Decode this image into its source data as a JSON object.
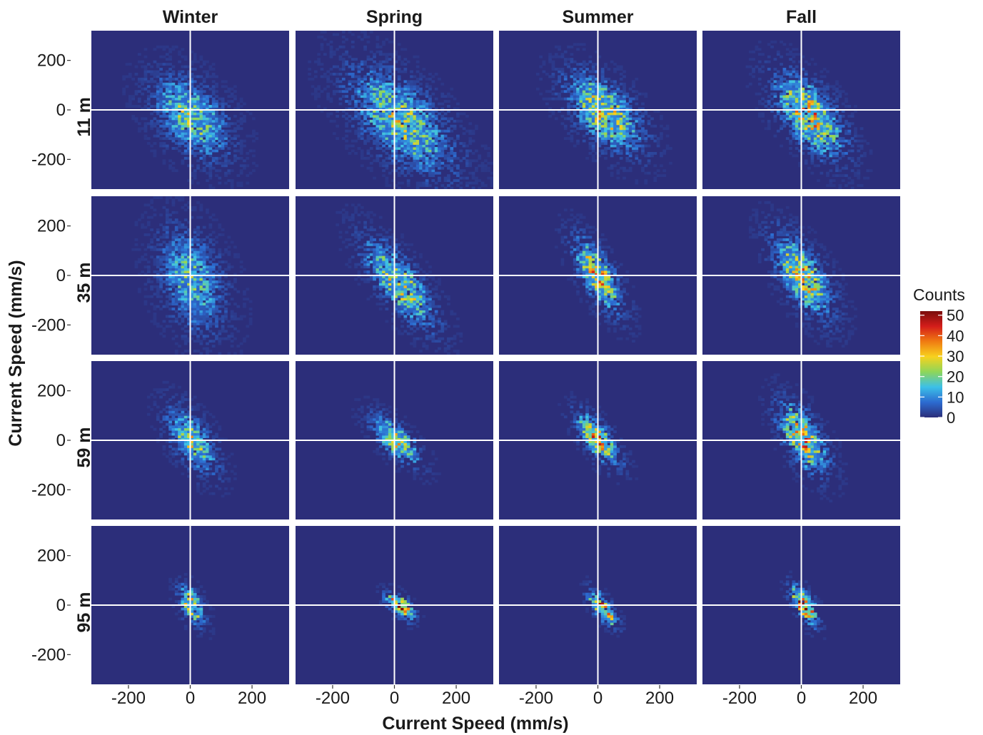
{
  "chart_data": {
    "type": "heatmap",
    "columns": [
      "Winter",
      "Spring",
      "Summer",
      "Fall"
    ],
    "rows": [
      "11 m",
      "35 m",
      "59 m",
      "95 m"
    ],
    "xlabel": "Current Speed (mm/s)",
    "ylabel": "Current Speed (mm/s)",
    "xlim": [
      -320,
      320
    ],
    "ylim": [
      -320,
      320
    ],
    "x_ticks": [
      -200,
      0,
      200
    ],
    "y_ticks": [
      200,
      0,
      -200
    ],
    "x_tick_labels": [
      "-200",
      "0",
      "200"
    ],
    "y_tick_labels": [
      "200",
      "0",
      "-200"
    ],
    "reference_lines": [
      0,
      0
    ],
    "background_color": "#2c2e7a",
    "reference_line_color": "#ffffff",
    "legend": {
      "title": "Counts",
      "placement": "right",
      "ticks": [
        0,
        10,
        20,
        30,
        40,
        50
      ],
      "tick_labels": [
        "0",
        "10",
        "20",
        "30",
        "40",
        "50"
      ],
      "range": [
        0,
        52
      ],
      "colors": [
        "#2c2e7a",
        "#2c6bd0",
        "#3cc0e8",
        "#8ed65a",
        "#f7d21e",
        "#f07b12",
        "#d41d1a",
        "#7a0c0c"
      ]
    },
    "panels": [
      {
        "row": "11 m",
        "col": "Winter",
        "cx": 5,
        "cy": -30,
        "sx": 70,
        "sy": 95,
        "rho": -0.45,
        "spread": 190,
        "peak": 22
      },
      {
        "row": "11 m",
        "col": "Spring",
        "cx": 20,
        "cy": -45,
        "sx": 95,
        "sy": 120,
        "rho": -0.6,
        "spread": 230,
        "peak": 24
      },
      {
        "row": "11 m",
        "col": "Summer",
        "cx": 20,
        "cy": -10,
        "sx": 70,
        "sy": 90,
        "rho": -0.55,
        "spread": 180,
        "peak": 28
      },
      {
        "row": "11 m",
        "col": "Fall",
        "cx": 25,
        "cy": -20,
        "sx": 65,
        "sy": 95,
        "rho": -0.6,
        "spread": 185,
        "peak": 32
      },
      {
        "row": "35 m",
        "col": "Winter",
        "cx": 5,
        "cy": -20,
        "sx": 60,
        "sy": 115,
        "rho": -0.35,
        "spread": 200,
        "peak": 18
      },
      {
        "row": "35 m",
        "col": "Spring",
        "cx": 15,
        "cy": -30,
        "sx": 65,
        "sy": 100,
        "rho": -0.75,
        "spread": 190,
        "peak": 28
      },
      {
        "row": "35 m",
        "col": "Summer",
        "cx": 0,
        "cy": 0,
        "sx": 45,
        "sy": 85,
        "rho": -0.7,
        "spread": 150,
        "peak": 32
      },
      {
        "row": "35 m",
        "col": "Fall",
        "cx": 5,
        "cy": 0,
        "sx": 55,
        "sy": 95,
        "rho": -0.65,
        "spread": 170,
        "peak": 30
      },
      {
        "row": "59 m",
        "col": "Winter",
        "cx": 5,
        "cy": 0,
        "sx": 45,
        "sy": 75,
        "rho": -0.6,
        "spread": 160,
        "peak": 26
      },
      {
        "row": "59 m",
        "col": "Spring",
        "cx": 5,
        "cy": 0,
        "sx": 45,
        "sy": 55,
        "rho": -0.7,
        "spread": 120,
        "peak": 30
      },
      {
        "row": "59 m",
        "col": "Summer",
        "cx": 0,
        "cy": 5,
        "sx": 40,
        "sy": 60,
        "rho": -0.7,
        "spread": 120,
        "peak": 36
      },
      {
        "row": "59 m",
        "col": "Fall",
        "cx": 5,
        "cy": 10,
        "sx": 45,
        "sy": 80,
        "rho": -0.6,
        "spread": 160,
        "peak": 34
      },
      {
        "row": "95 m",
        "col": "Winter",
        "cx": 5,
        "cy": 0,
        "sx": 25,
        "sy": 45,
        "rho": -0.5,
        "spread": 90,
        "peak": 30
      },
      {
        "row": "95 m",
        "col": "Spring",
        "cx": 20,
        "cy": -5,
        "sx": 25,
        "sy": 30,
        "rho": -0.6,
        "spread": 70,
        "peak": 52
      },
      {
        "row": "95 m",
        "col": "Summer",
        "cx": 15,
        "cy": -10,
        "sx": 25,
        "sy": 40,
        "rho": -0.7,
        "spread": 90,
        "peak": 48
      },
      {
        "row": "95 m",
        "col": "Fall",
        "cx": 10,
        "cy": 0,
        "sx": 25,
        "sy": 45,
        "rho": -0.65,
        "spread": 90,
        "peak": 48
      }
    ]
  }
}
